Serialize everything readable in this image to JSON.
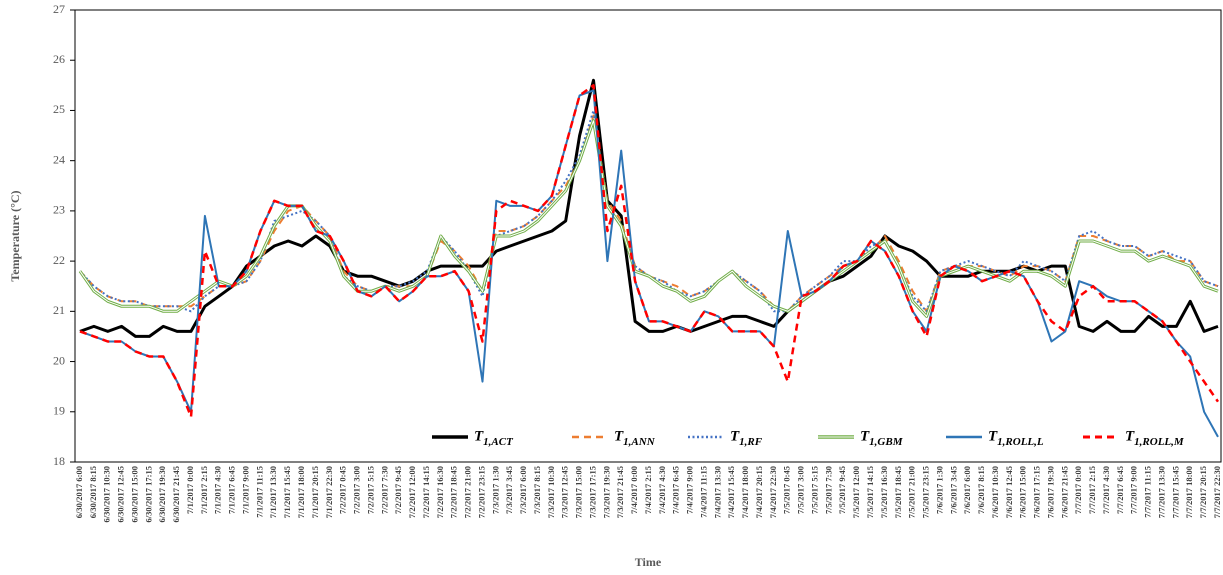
{
  "chart_data": {
    "type": "line",
    "x_label": "Time",
    "y_label": "Temperature (°C)",
    "ylim": [
      18,
      27
    ],
    "yticks": [
      18,
      19,
      20,
      21,
      22,
      23,
      24,
      25,
      26,
      27
    ],
    "categories": [
      "6/30/2017 6:00",
      "6/30/2017 8:15",
      "6/30/2017 10:30",
      "6/30/2017 12:45",
      "6/30/2017 15:00",
      "6/30/2017 17:15",
      "6/30/2017 19:30",
      "6/30/2017 21:45",
      "7/1/2017 0:00",
      "7/1/2017 2:15",
      "7/1/2017 4:30",
      "7/1/2017 6:45",
      "7/1/2017 9:00",
      "7/1/2017 11:15",
      "7/1/2017 13:30",
      "7/1/2017 15:45",
      "7/1/2017 18:00",
      "7/1/2017 20:15",
      "7/1/2017 22:30",
      "7/2/2017 0:45",
      "7/2/2017 3:00",
      "7/2/2017 5:15",
      "7/2/2017 7:30",
      "7/2/2017 9:45",
      "7/2/2017 12:00",
      "7/2/2017 14:15",
      "7/2/2017 16:30",
      "7/2/2017 18:45",
      "7/2/2017 21:00",
      "7/2/2017 23:15",
      "7/3/2017 1:30",
      "7/3/2017 3:45",
      "7/3/2017 6:00",
      "7/3/2017 8:15",
      "7/3/2017 10:30",
      "7/3/2017 12:45",
      "7/3/2017 15:00",
      "7/3/2017 17:15",
      "7/3/2017 19:30",
      "7/3/2017 21:45",
      "7/4/2017 0:00",
      "7/4/2017 2:15",
      "7/4/2017 4:30",
      "7/4/2017 6:45",
      "7/4/2017 9:00",
      "7/4/2017 11:15",
      "7/4/2017 13:30",
      "7/4/2017 15:45",
      "7/4/2017 18:00",
      "7/4/2017 20:15",
      "7/4/2017 22:30",
      "7/5/2017 0:45",
      "7/5/2017 3:00",
      "7/5/2017 5:15",
      "7/5/2017 7:30",
      "7/5/2017 9:45",
      "7/5/2017 12:00",
      "7/5/2017 14:15",
      "7/5/2017 16:30",
      "7/5/2017 18:45",
      "7/5/2017 21:00",
      "7/5/2017 23:15",
      "7/6/2017 1:30",
      "7/6/2017 3:45",
      "7/6/2017 6:00",
      "7/6/2017 8:15",
      "7/6/2017 10:30",
      "7/6/2017 12:45",
      "7/6/2017 15:00",
      "7/6/2017 17:15",
      "7/6/2017 19:30",
      "7/6/2017 21:45",
      "7/7/2017 0:00",
      "7/7/2017 2:15",
      "7/7/2017 4:30",
      "7/7/2017 6:45",
      "7/7/2017 9:00",
      "7/7/2017 11:15",
      "7/7/2017 13:30",
      "7/7/2017 15:45",
      "7/7/2017 18:00",
      "7/7/2017 20:15",
      "7/7/2017 22:30"
    ],
    "series": [
      {
        "name": "T1,ACT",
        "color": "#000000",
        "style": "solid",
        "width": 3,
        "values": [
          20.6,
          20.7,
          20.6,
          20.7,
          20.5,
          20.5,
          20.7,
          20.6,
          20.6,
          21.1,
          21.3,
          21.5,
          21.9,
          22.1,
          22.3,
          22.4,
          22.3,
          22.5,
          22.3,
          21.8,
          21.7,
          21.7,
          21.6,
          21.5,
          21.6,
          21.8,
          21.9,
          21.9,
          21.9,
          21.9,
          22.2,
          22.3,
          22.4,
          22.5,
          22.6,
          22.8,
          24.5,
          25.6,
          23.2,
          22.9,
          20.8,
          20.6,
          20.6,
          20.7,
          20.6,
          20.7,
          20.8,
          20.9,
          20.9,
          20.8,
          20.7,
          21.0,
          21.2,
          21.4,
          21.6,
          21.7,
          21.9,
          22.1,
          22.5,
          22.3,
          22.2,
          22.0,
          21.7,
          21.7,
          21.7,
          21.8,
          21.8,
          21.8,
          21.9,
          21.8,
          21.9,
          21.9,
          20.7,
          20.6,
          20.8,
          20.6,
          20.6,
          20.9,
          20.7,
          20.7,
          21.2,
          20.6,
          20.7
        ]
      },
      {
        "name": "T1,ANN",
        "color": "#ED7D31",
        "style": "dashed",
        "width": 2,
        "values": [
          21.8,
          21.5,
          21.3,
          21.2,
          21.2,
          21.1,
          21.1,
          21.1,
          21.1,
          21.3,
          21.5,
          21.5,
          21.6,
          22.0,
          22.6,
          23.0,
          23.1,
          22.8,
          22.5,
          21.8,
          21.5,
          21.4,
          21.5,
          21.5,
          21.5,
          21.7,
          22.4,
          22.2,
          21.9,
          21.4,
          22.6,
          22.6,
          22.7,
          22.9,
          23.2,
          23.5,
          24.0,
          24.9,
          23.2,
          22.8,
          21.9,
          21.7,
          21.6,
          21.5,
          21.3,
          21.4,
          21.6,
          21.8,
          21.6,
          21.4,
          21.1,
          21.0,
          21.3,
          21.5,
          21.7,
          21.9,
          22.0,
          22.2,
          22.5,
          22.0,
          21.4,
          21.0,
          21.8,
          21.9,
          21.9,
          21.9,
          21.8,
          21.7,
          21.9,
          21.9,
          21.8,
          21.6,
          22.5,
          22.5,
          22.4,
          22.3,
          22.3,
          22.1,
          22.2,
          22.0,
          22.0,
          21.6,
          21.5
        ]
      },
      {
        "name": "T1,RF",
        "color": "#4472C4",
        "style": "dotted",
        "width": 2,
        "values": [
          21.8,
          21.5,
          21.3,
          21.2,
          21.2,
          21.1,
          21.1,
          21.1,
          21.0,
          21.3,
          21.5,
          21.5,
          21.6,
          22.0,
          22.8,
          22.9,
          23.0,
          22.8,
          22.5,
          21.7,
          21.5,
          21.4,
          21.5,
          21.5,
          21.6,
          21.8,
          22.5,
          22.2,
          21.8,
          21.3,
          22.5,
          22.6,
          22.7,
          22.9,
          23.2,
          23.6,
          24.1,
          25.0,
          23.1,
          22.7,
          21.9,
          21.7,
          21.6,
          21.4,
          21.3,
          21.4,
          21.6,
          21.8,
          21.6,
          21.4,
          21.0,
          21.0,
          21.3,
          21.5,
          21.7,
          22.0,
          22.0,
          22.3,
          22.4,
          21.9,
          21.3,
          21.0,
          21.8,
          21.9,
          22.0,
          21.9,
          21.8,
          21.7,
          22.0,
          21.9,
          21.8,
          21.6,
          22.5,
          22.6,
          22.4,
          22.3,
          22.3,
          22.1,
          22.2,
          22.1,
          22.0,
          21.6,
          21.5
        ]
      },
      {
        "name": "T1,GBM",
        "color": "#70AD47",
        "style": "double",
        "width": 3,
        "values": [
          21.8,
          21.4,
          21.2,
          21.1,
          21.1,
          21.1,
          21.0,
          21.0,
          21.2,
          21.4,
          21.6,
          21.5,
          21.7,
          22.1,
          22.7,
          23.1,
          23.1,
          22.7,
          22.4,
          21.7,
          21.4,
          21.4,
          21.5,
          21.4,
          21.5,
          21.7,
          22.5,
          22.1,
          21.8,
          21.4,
          22.5,
          22.5,
          22.6,
          22.8,
          23.1,
          23.4,
          24.0,
          24.8,
          23.1,
          22.7,
          21.8,
          21.7,
          21.5,
          21.4,
          21.2,
          21.3,
          21.6,
          21.8,
          21.5,
          21.3,
          21.1,
          21.0,
          21.2,
          21.4,
          21.6,
          21.8,
          22.0,
          22.2,
          22.4,
          21.9,
          21.2,
          20.9,
          21.7,
          21.8,
          21.9,
          21.8,
          21.7,
          21.6,
          21.8,
          21.8,
          21.7,
          21.5,
          22.4,
          22.4,
          22.3,
          22.2,
          22.2,
          22.0,
          22.1,
          22.0,
          21.9,
          21.5,
          21.4
        ]
      },
      {
        "name": "T1,ROLL,L",
        "color": "#2E75B6",
        "style": "solid",
        "width": 2,
        "values": [
          20.6,
          20.5,
          20.4,
          20.4,
          20.2,
          20.1,
          20.1,
          19.6,
          19.0,
          22.9,
          21.5,
          21.5,
          21.8,
          22.6,
          23.2,
          23.1,
          23.1,
          22.6,
          22.5,
          22.0,
          21.4,
          21.3,
          21.5,
          21.2,
          21.4,
          21.7,
          21.7,
          21.8,
          21.4,
          19.6,
          23.2,
          23.1,
          23.1,
          23.0,
          23.3,
          24.3,
          25.3,
          25.4,
          22.0,
          24.2,
          21.6,
          20.8,
          20.8,
          20.7,
          20.6,
          21.0,
          20.9,
          20.6,
          20.6,
          20.6,
          20.3,
          22.6,
          21.3,
          21.4,
          21.6,
          21.9,
          22.0,
          22.4,
          22.2,
          21.7,
          21.0,
          20.6,
          21.7,
          21.9,
          21.8,
          21.6,
          21.7,
          21.8,
          21.7,
          21.2,
          20.4,
          20.6,
          21.6,
          21.5,
          21.3,
          21.2,
          21.2,
          21.0,
          20.8,
          20.4,
          20.1,
          19.0,
          18.5
        ]
      },
      {
        "name": "T1,ROLL,M",
        "color": "#FF0000",
        "style": "dashed",
        "width": 2.5,
        "values": [
          20.6,
          20.5,
          20.4,
          20.4,
          20.2,
          20.1,
          20.1,
          19.6,
          18.9,
          22.2,
          21.5,
          21.5,
          21.8,
          22.6,
          23.2,
          23.1,
          23.1,
          22.6,
          22.5,
          22.0,
          21.4,
          21.3,
          21.5,
          21.2,
          21.4,
          21.7,
          21.7,
          21.8,
          21.4,
          20.4,
          23.0,
          23.2,
          23.1,
          23.0,
          23.3,
          24.3,
          25.3,
          25.5,
          22.6,
          23.5,
          21.6,
          20.8,
          20.8,
          20.7,
          20.6,
          21.0,
          20.9,
          20.6,
          20.6,
          20.6,
          20.3,
          19.6,
          21.3,
          21.4,
          21.6,
          21.9,
          22.0,
          22.4,
          22.2,
          21.7,
          21.0,
          20.5,
          21.7,
          21.9,
          21.8,
          21.6,
          21.7,
          21.8,
          21.7,
          21.2,
          20.8,
          20.6,
          21.3,
          21.5,
          21.2,
          21.2,
          21.2,
          21.0,
          20.8,
          20.4,
          20.0,
          19.6,
          19.2
        ]
      }
    ]
  }
}
